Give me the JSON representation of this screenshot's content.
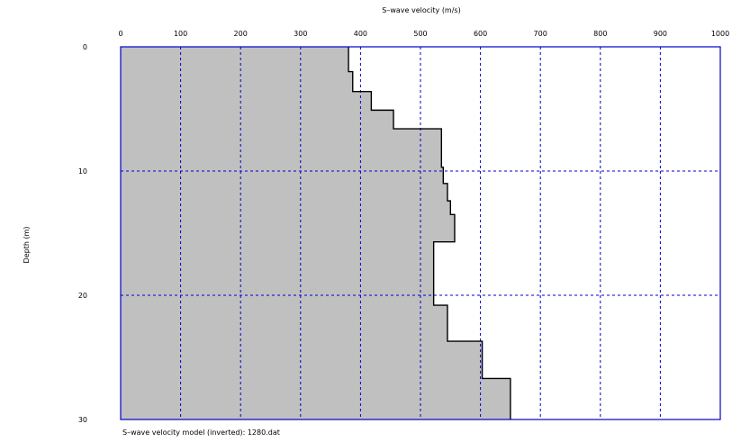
{
  "chart_data": {
    "type": "area",
    "title": "",
    "xlabel": "S–wave velocity (m/s)",
    "ylabel": "Depth (m)",
    "caption": "S–wave velocity model (inverted): 1280.dat",
    "xlim": [
      0,
      1000
    ],
    "ylim": [
      0,
      30
    ],
    "y_inverted": true,
    "x_axis_position": "top",
    "x_ticks": [
      "0",
      "100",
      "200",
      "300",
      "400",
      "500",
      "600",
      "700",
      "800",
      "900",
      "1000"
    ],
    "y_ticks": [
      "0",
      "10",
      "20",
      "30"
    ],
    "grid": true,
    "colors": {
      "fill": "#c0c0c0",
      "line": "#000000",
      "grid": "#0000cc",
      "frame": "#0000cc"
    },
    "layers": [
      {
        "depth_top": 0,
        "depth_bottom": 2.0,
        "velocity": 380
      },
      {
        "depth_top": 2.0,
        "depth_bottom": 3.6,
        "velocity": 387
      },
      {
        "depth_top": 3.6,
        "depth_bottom": 5.1,
        "velocity": 418
      },
      {
        "depth_top": 5.1,
        "depth_bottom": 6.6,
        "velocity": 455
      },
      {
        "depth_top": 6.6,
        "depth_bottom": 9.7,
        "velocity": 535
      },
      {
        "depth_top": 9.7,
        "depth_bottom": 11.0,
        "velocity": 538
      },
      {
        "depth_top": 11.0,
        "depth_bottom": 12.4,
        "velocity": 545
      },
      {
        "depth_top": 12.4,
        "depth_bottom": 13.5,
        "velocity": 550
      },
      {
        "depth_top": 13.5,
        "depth_bottom": 15.7,
        "velocity": 557
      },
      {
        "depth_top": 15.7,
        "depth_bottom": 20.8,
        "velocity": 522
      },
      {
        "depth_top": 20.8,
        "depth_bottom": 23.7,
        "velocity": 545
      },
      {
        "depth_top": 23.7,
        "depth_bottom": 26.7,
        "velocity": 603
      },
      {
        "depth_top": 26.7,
        "depth_bottom": 30.0,
        "velocity": 650
      }
    ]
  }
}
